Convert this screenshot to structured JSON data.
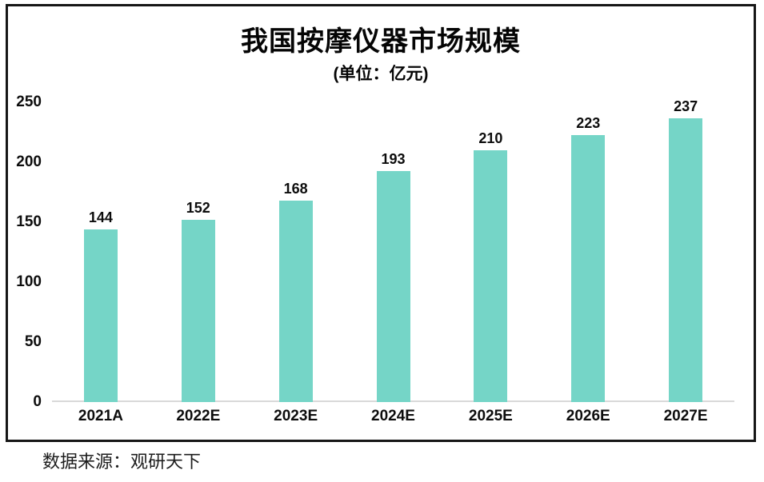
{
  "chart_data": {
    "type": "bar",
    "title": "我国按摩仪器市场规模",
    "subtitle": "(单位：亿元)",
    "categories": [
      "2021A",
      "2022E",
      "2023E",
      "2024E",
      "2025E",
      "2026E",
      "2027E"
    ],
    "values": [
      144,
      152,
      168,
      193,
      210,
      223,
      237
    ],
    "yticks": [
      0,
      50,
      100,
      150,
      200,
      250
    ],
    "ylim": [
      0,
      250
    ],
    "xlabel": "",
    "ylabel": "",
    "bar_color": "#75d5c7",
    "baseline_color": "#d9d9d9",
    "frame_border_color": "#161616",
    "grid": "off",
    "legend": "none",
    "value_labels_shown": true
  },
  "footer": {
    "source": "数据来源：观研天下"
  }
}
